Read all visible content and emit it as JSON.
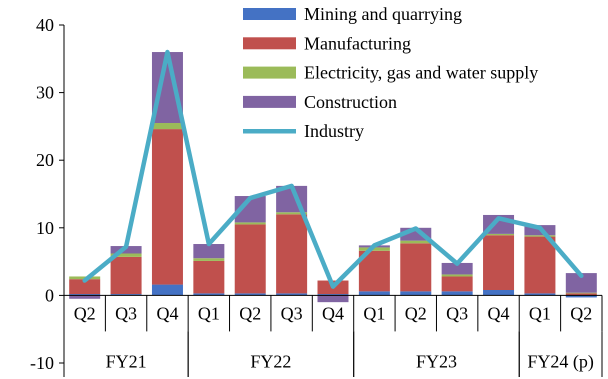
{
  "chart_data": {
    "type": "bar",
    "subtype": "stacked bar with line overlay",
    "title": "",
    "xlabel": "",
    "ylabel": "",
    "ylim": [
      -10,
      40
    ],
    "yticks": [
      -10,
      0,
      10,
      20,
      30,
      40
    ],
    "grid": false,
    "legend_position": "top-right",
    "categories": [
      "Q2",
      "Q3",
      "Q4",
      "Q1",
      "Q2",
      "Q3",
      "Q4",
      "Q1",
      "Q2",
      "Q3",
      "Q4",
      "Q1",
      "Q2"
    ],
    "groups": [
      {
        "label": "FY21",
        "start": 0,
        "end": 2
      },
      {
        "label": "FY22",
        "start": 3,
        "end": 6
      },
      {
        "label": "FY23",
        "start": 7,
        "end": 10
      },
      {
        "label": "FY24 (p)",
        "start": 11,
        "end": 12
      }
    ],
    "series": [
      {
        "name": "Mining and quarrying",
        "kind": "bar",
        "color": "#4472C4",
        "values": [
          0.2,
          0.2,
          1.6,
          0.3,
          0.3,
          0.3,
          0.2,
          0.6,
          0.6,
          0.6,
          0.8,
          0.3,
          -0.3
        ]
      },
      {
        "name": "Manufacturing",
        "kind": "bar",
        "color": "#C0504D",
        "values": [
          2.2,
          5.5,
          23.0,
          4.8,
          10.2,
          11.7,
          2.0,
          6.0,
          7.1,
          2.2,
          8.1,
          8.4,
          0.3
        ]
      },
      {
        "name": "Electricity, gas and water supply",
        "kind": "bar",
        "color": "#9BBB59",
        "values": [
          0.4,
          0.5,
          0.9,
          0.4,
          0.3,
          0.3,
          0.0,
          0.5,
          0.4,
          0.3,
          0.2,
          0.2,
          0.1
        ]
      },
      {
        "name": "Construction",
        "kind": "bar",
        "color": "#8064A2",
        "values": [
          -0.5,
          1.1,
          10.5,
          2.1,
          3.9,
          3.9,
          -1.0,
          0.3,
          1.9,
          1.7,
          2.8,
          1.5,
          2.9
        ]
      },
      {
        "name": "Industry",
        "kind": "line",
        "color": "#4BACC6",
        "values": [
          2.2,
          7.2,
          36.0,
          7.6,
          14.4,
          16.2,
          1.3,
          7.4,
          9.9,
          4.7,
          11.4,
          10.0,
          2.9
        ]
      }
    ]
  }
}
